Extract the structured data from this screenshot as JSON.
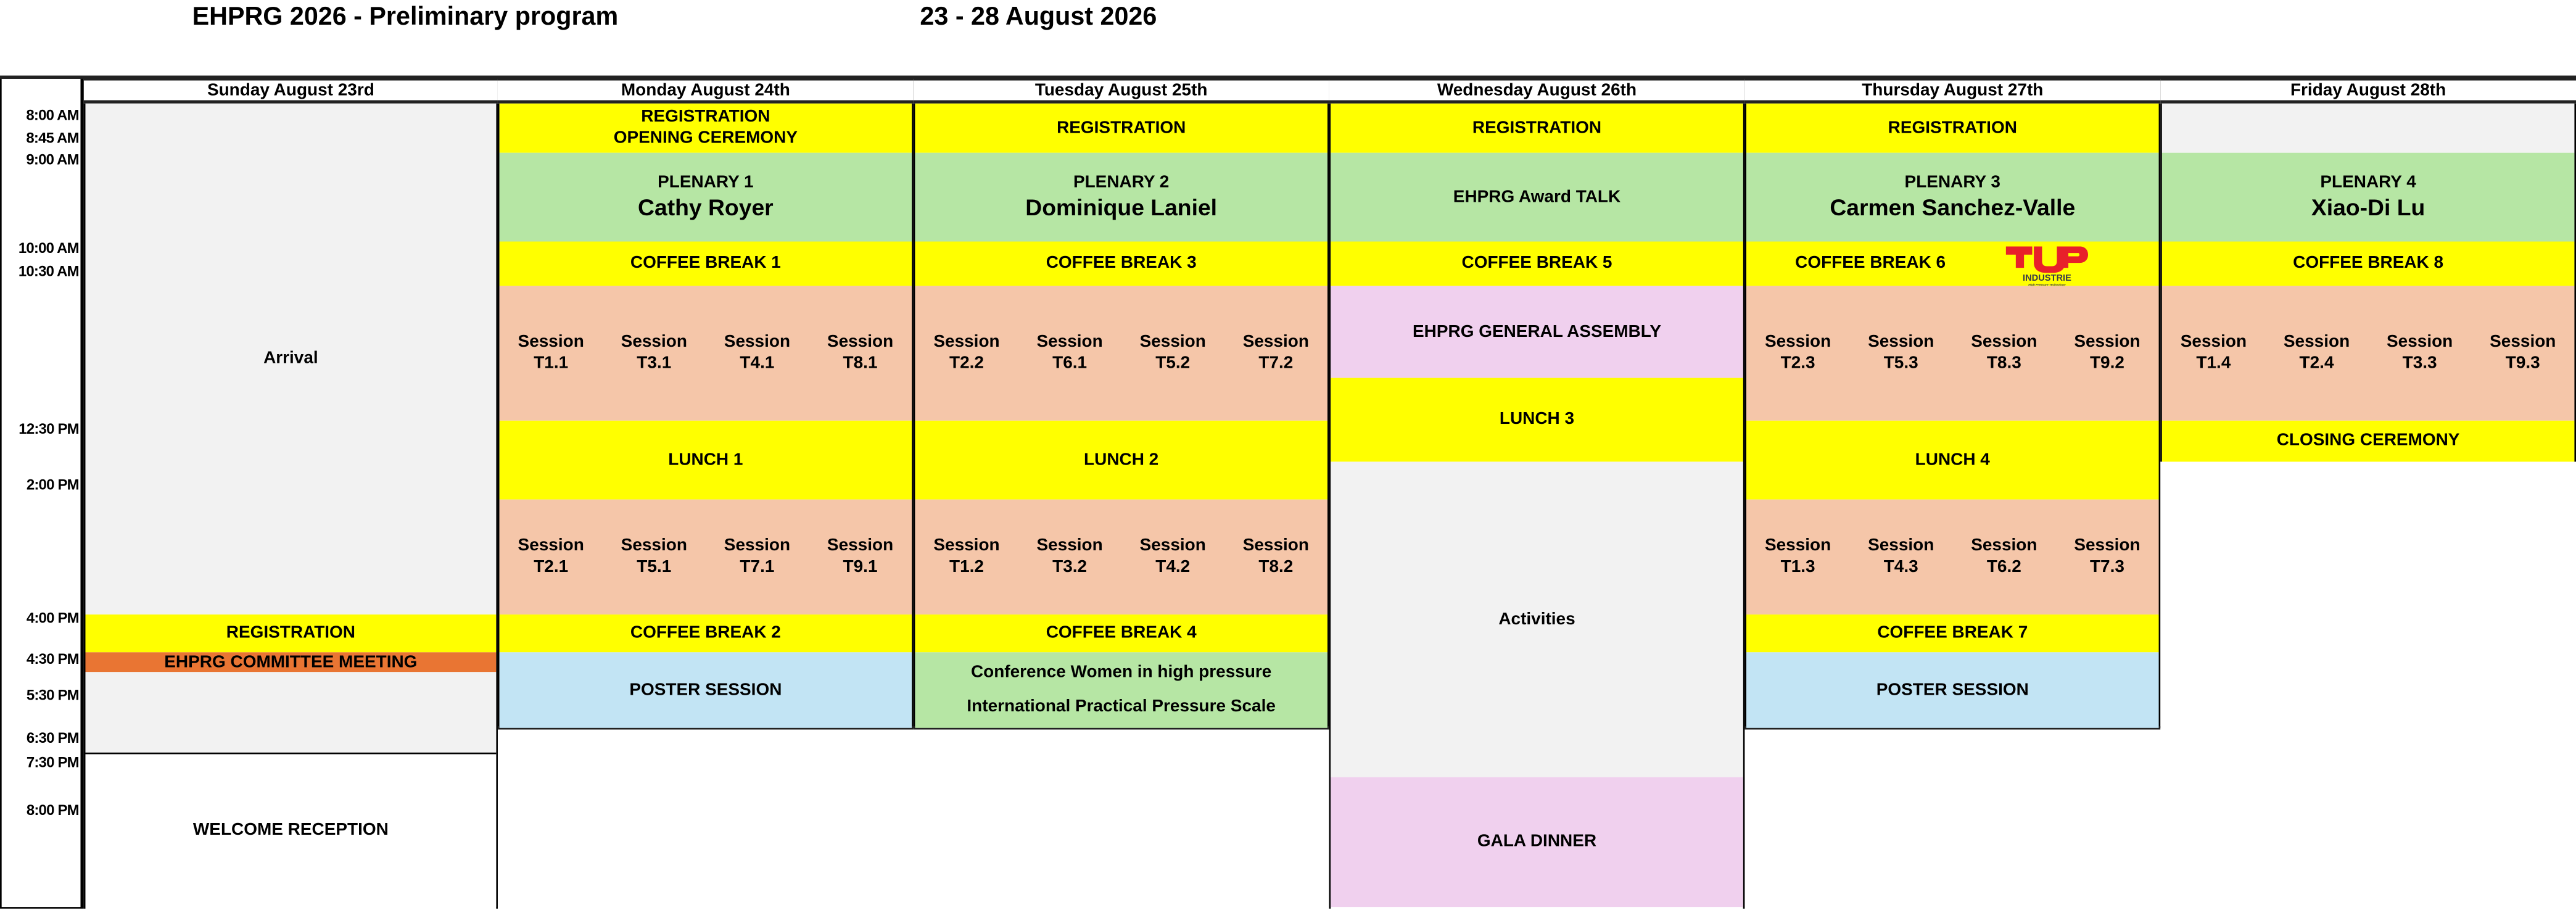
{
  "header": {
    "title": "EHPRG 2026 - Preliminary program",
    "dates": "23 - 28 August 2026"
  },
  "times": [
    "8:00 AM",
    "8:45 AM",
    "9:00 AM",
    "10:00 AM",
    "10:30 AM",
    "12:30 PM",
    "2:00 PM",
    "4:00 PM",
    "4:30 PM",
    "5:30 PM",
    "6:30 PM",
    "7:30 PM",
    "8:00 PM"
  ],
  "days": [
    {
      "label": "Sunday  August 23rd",
      "events": [
        {
          "lines": [
            "Arrival"
          ]
        },
        {
          "lines": [
            "REGISTRATION"
          ]
        },
        {
          "lines": [
            "EHPRG COMMITTEE MEETING"
          ]
        },
        {
          "lines": []
        },
        {
          "lines": [
            "WELCOME RECEPTION"
          ]
        }
      ]
    },
    {
      "label": "Monday August 24th",
      "events": [
        {
          "lines": [
            "REGISTRATION",
            "OPENING CEREMONY"
          ]
        },
        {
          "lines": [
            "PLENARY 1"
          ],
          "speaker": "Cathy Royer"
        },
        {
          "lines": [
            "COFFEE BREAK 1"
          ]
        },
        {
          "sessions": [
            "T1.1",
            "T3.1",
            "T4.1",
            "T8.1"
          ]
        },
        {
          "lines": [
            "LUNCH 1"
          ]
        },
        {
          "sessions": [
            "T2.1",
            "T5.1",
            "T7.1",
            "T9.1"
          ]
        },
        {
          "lines": [
            "COFFEE BREAK 2"
          ]
        },
        {
          "lines": [
            "POSTER SESSION"
          ]
        }
      ]
    },
    {
      "label": "Tuesday  August 25th",
      "events": [
        {
          "lines": [
            "REGISTRATION"
          ]
        },
        {
          "lines": [
            "PLENARY 2"
          ],
          "speaker": "Dominique Laniel"
        },
        {
          "lines": [
            "COFFEE BREAK 3"
          ]
        },
        {
          "sessions": [
            "T2.2",
            "T6.1",
            "T5.2",
            "T7.2"
          ]
        },
        {
          "lines": [
            "LUNCH 2"
          ]
        },
        {
          "sessions": [
            "T1.2",
            "T3.2",
            "T4.2",
            "T8.2"
          ]
        },
        {
          "lines": [
            "COFFEE BREAK 4"
          ]
        },
        {
          "lines": [
            "Conference Women in high pressure",
            "International Practical Pressure Scale"
          ]
        }
      ]
    },
    {
      "label": "Wednesday  August 26th",
      "events": [
        {
          "lines": [
            "REGISTRATION"
          ]
        },
        {
          "lines": [
            "EHPRG Award TALK"
          ]
        },
        {
          "lines": [
            "COFFEE BREAK 5"
          ]
        },
        {
          "lines": [
            "EHPRG GENERAL ASSEMBLY"
          ]
        },
        {
          "lines": [
            "LUNCH 3"
          ]
        },
        {
          "lines": [
            "Activities"
          ]
        },
        {
          "lines": [
            "GALA DINNER"
          ]
        }
      ]
    },
    {
      "label": "Thursday  August 27th",
      "events": [
        {
          "lines": [
            "REGISTRATION"
          ]
        },
        {
          "lines": [
            "PLENARY 3"
          ],
          "speaker": "Carmen Sanchez-Valle"
        },
        {
          "lines": [
            "COFFEE BREAK 6"
          ]
        },
        {
          "sessions": [
            "T2.3",
            "T5.3",
            "T8.3",
            "T9.2"
          ]
        },
        {
          "lines": [
            "LUNCH 4"
          ]
        },
        {
          "sessions": [
            "T1.3",
            "T4.3",
            "T6.2",
            "T7.3"
          ]
        },
        {
          "lines": [
            "COFFEE BREAK 7"
          ]
        },
        {
          "lines": [
            "POSTER SESSION"
          ]
        }
      ]
    },
    {
      "label": "Friday  August 28th",
      "events": [
        {
          "lines": []
        },
        {
          "lines": [
            "PLENARY 4"
          ],
          "speaker": "Xiao-Di Lu"
        },
        {
          "lines": [
            "COFFEE BREAK 8"
          ]
        },
        {
          "sessions": [
            "T1.4",
            "T2.4",
            "T3.3",
            "T9.3"
          ]
        },
        {
          "lines": [
            "CLOSING CEREMONY"
          ]
        }
      ]
    }
  ],
  "session_word": "Session",
  "sponsor_logo": {
    "text": "TOP",
    "subtext": "INDUSTRIE",
    "tagline": "High Pressure Technology",
    "color": "#e8202a"
  },
  "colors": {
    "break": "#ffff00",
    "plenary": "#b6e6a4",
    "session": "#f5c6a9",
    "free": "#f2f2f2",
    "poster": "#c2e4f4",
    "assembly": "#f0d0ee",
    "committee": "#e97533"
  }
}
